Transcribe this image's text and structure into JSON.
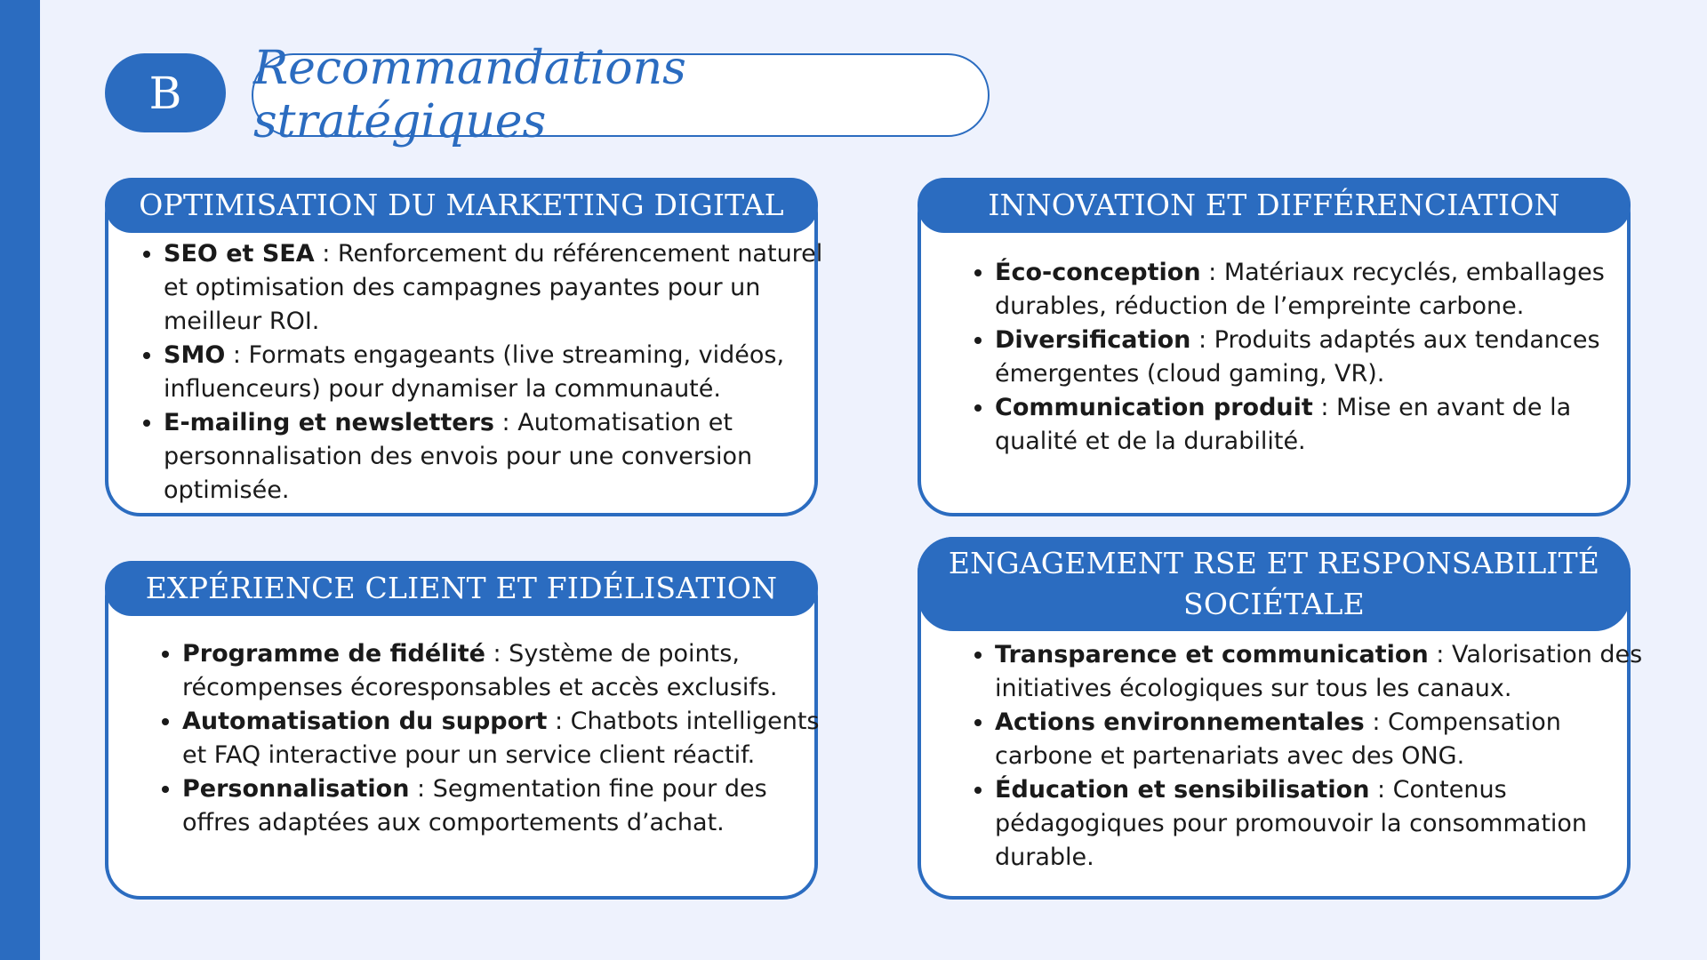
{
  "header": {
    "badge": "B",
    "title": "Recommandations stratégiques"
  },
  "cards": [
    {
      "title": "OPTIMISATION DU MARKETING DIGITAL",
      "items": [
        {
          "bold": "SEO et SEA",
          "text": " : Renforcement du référencement naturel et optimisation des campagnes payantes pour un meilleur ROI."
        },
        {
          "bold": "SMO",
          "text": " : Formats engageants (live streaming, vidéos, influenceurs) pour dynamiser la communauté."
        },
        {
          "bold": "E-mailing et newsletters",
          "text": " : Automatisation et personnalisation des envois pour une conversion optimisée."
        }
      ]
    },
    {
      "title": "INNOVATION ET DIFFÉRENCIATION",
      "items": [
        {
          "bold": "Éco-conception",
          "text": " : Matériaux recyclés, emballages durables, réduction de l’empreinte carbone."
        },
        {
          "bold": "Diversification",
          "text": " : Produits adaptés aux tendances émergentes (cloud gaming, VR)."
        },
        {
          "bold": "Communication produit",
          "text": " : Mise en avant de la qualité et de la durabilité."
        }
      ]
    },
    {
      "title": "EXPÉRIENCE CLIENT ET FIDÉLISATION",
      "items": [
        {
          "bold": "Programme de fidélité",
          "text": " : Système de points, récompenses écoresponsables et accès exclusifs."
        },
        {
          "bold": "Automatisation du support",
          "text": " : Chatbots intelligents et FAQ interactive pour un service client réactif."
        },
        {
          "bold": "Personnalisation",
          "text": " : Segmentation fine pour des offres adaptées aux comportements d’achat."
        }
      ]
    },
    {
      "title": "ENGAGEMENT RSE ET RESPONSABILITÉ SOCIÉTALE",
      "items": [
        {
          "bold": "Transparence et communication",
          "text": " : Valorisation des initiatives écologiques sur tous les canaux."
        },
        {
          "bold": "Actions environnementales",
          "text": " : Compensation carbone et partenariats avec des ONG."
        },
        {
          "bold": "Éducation et sensibilisation",
          "text": " : Contenus pédagogiques pour promouvoir la consommation durable."
        }
      ]
    }
  ]
}
